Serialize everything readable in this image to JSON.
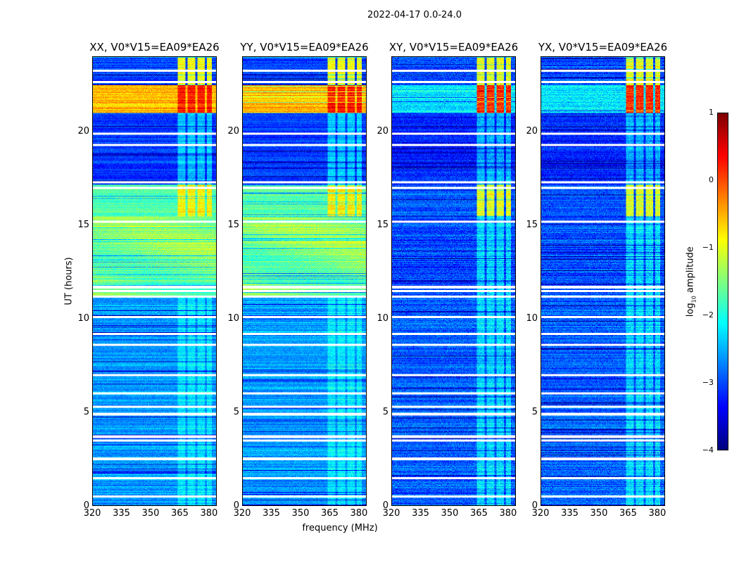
{
  "chart_data": {
    "type": "heatmap",
    "title": "2022-04-17 0.0-24.0",
    "xlabel": "frequency (MHz)",
    "ylabel": "UT (hours)",
    "xlim": [
      320,
      384
    ],
    "ylim": [
      0,
      24
    ],
    "xticks": [
      "320",
      "335",
      "350",
      "365",
      "380"
    ],
    "xtick_values": [
      320,
      335,
      350,
      365,
      380
    ],
    "yticks": [
      "0",
      "5",
      "10",
      "15",
      "20"
    ],
    "ytick_values": [
      0,
      5,
      10,
      15,
      20
    ],
    "panels": [
      {
        "title": "XX, V0*V15=EA09*EA26",
        "kind": "parallel"
      },
      {
        "title": "YY, V0*V15=EA09*EA26",
        "kind": "parallel"
      },
      {
        "title": "XY, V0*V15=EA09*EA26",
        "kind": "cross"
      },
      {
        "title": "YX, V0*V15=EA09*EA26",
        "kind": "cross"
      }
    ],
    "colorbar": {
      "label_parts": [
        "log",
        "10",
        " amplitude"
      ],
      "range": [
        -4,
        1
      ],
      "colormap": "jet",
      "ticks": [
        "1",
        "0",
        "−1",
        "−2",
        "−3",
        "−4"
      ],
      "tick_values": [
        1,
        0,
        -1,
        -2,
        -3,
        -4
      ]
    },
    "rfi_channels_mhz": [
      [
        364,
        368
      ],
      [
        369,
        373
      ],
      [
        374,
        378
      ],
      [
        379,
        381.5
      ]
    ],
    "segments_log10_amplitude": [
      {
        "t": [
          0,
          11.2
        ],
        "parallel": -2.6,
        "cross": -2.9,
        "rfi_parallel": -2.2,
        "rfi_cross": -2.3
      },
      {
        "t": [
          11.2,
          15.5
        ],
        "parallel": -1.5,
        "cross": -3.0,
        "rfi_parallel": -1.5,
        "rfi_cross": -2.3
      },
      {
        "t": [
          15.5,
          17.2
        ],
        "parallel": -1.7,
        "cross": -2.9,
        "rfi_parallel": -0.8,
        "rfi_cross": -1.0
      },
      {
        "t": [
          17.2,
          21.0
        ],
        "parallel": -3.1,
        "cross": -3.2,
        "rfi_parallel": -2.4,
        "rfi_cross": -2.5
      },
      {
        "t": [
          21.0,
          22.5
        ],
        "parallel": -0.5,
        "cross": -2.2,
        "rfi_parallel": 0.3,
        "rfi_cross": 0.2
      },
      {
        "t": [
          22.5,
          24.0
        ],
        "parallel": -3.0,
        "cross": -3.0,
        "rfi_parallel": -0.9,
        "rfi_cross": -1.0
      }
    ],
    "flagged_hours": [
      0.5,
      1.45,
      2.5,
      3.5,
      3.7,
      4.9,
      5.3,
      6.0,
      7.0,
      8.6,
      9.2,
      10.1,
      11.2,
      11.5,
      11.7,
      15.2,
      17.0,
      17.3,
      19.3,
      19.9,
      22.7,
      23.3
    ]
  }
}
